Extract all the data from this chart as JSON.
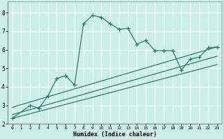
{
  "title": "",
  "xlabel": "Humidex (Indice chaleur)",
  "bg_color": "#cceee8",
  "line_color": "#2e7d6e",
  "grid_color": "#ffffff",
  "xlim": [
    -0.5,
    23.5
  ],
  "ylim": [
    2.0,
    8.6
  ],
  "xticks": [
    0,
    1,
    2,
    3,
    4,
    5,
    6,
    7,
    8,
    9,
    10,
    11,
    12,
    13,
    14,
    15,
    16,
    17,
    18,
    19,
    20,
    21,
    22,
    23
  ],
  "yticks": [
    2,
    3,
    4,
    5,
    6,
    7,
    8
  ],
  "series1_x": [
    0,
    2,
    3,
    4,
    5,
    6,
    7,
    8,
    9,
    10,
    11,
    12,
    13,
    14,
    15,
    16,
    17,
    18,
    19,
    20,
    21,
    22,
    23
  ],
  "series1_y": [
    2.3,
    3.0,
    2.85,
    3.5,
    4.45,
    4.6,
    4.1,
    7.4,
    7.85,
    7.75,
    7.4,
    7.1,
    7.15,
    6.3,
    6.5,
    5.95,
    5.95,
    5.95,
    4.9,
    5.5,
    5.6,
    6.1,
    6.15
  ],
  "series2_x": [
    0,
    23
  ],
  "series2_y": [
    2.9,
    6.15
  ],
  "series3_x": [
    0,
    23
  ],
  "series3_y": [
    2.5,
    5.65
  ],
  "series4_x": [
    0,
    23
  ],
  "series4_y": [
    2.3,
    5.2
  ],
  "marker": "+",
  "marker_size": 4,
  "line_width": 0.9
}
